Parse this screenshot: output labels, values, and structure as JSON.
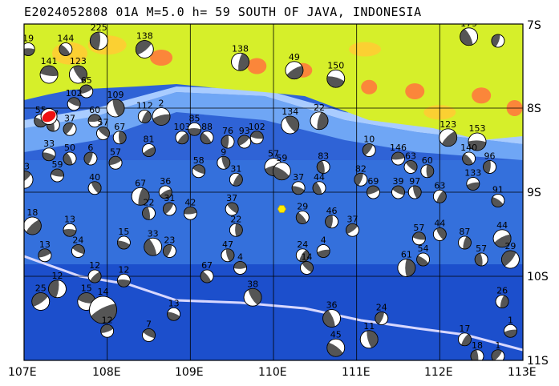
{
  "title": "E2024052808 01A M=5.0 h= 59 SOUTH OF JAVA, INDONESIA",
  "lat_labels": [
    "7S",
    "8S",
    "9S",
    "10S",
    "11S"
  ],
  "lon_labels": [
    "107E",
    "108E",
    "109E",
    "110E",
    "111E",
    "112E",
    "113E"
  ],
  "extent": {
    "lon_min": 107,
    "lon_max": 113,
    "lat_min": -11,
    "lat_max": -7
  },
  "colors": {
    "land": "#d6ef2a",
    "land_high": "#ffcc33",
    "peak": "#ff7a3c",
    "shelf": "#9fc5ff",
    "ocean": "#3b78e0",
    "deep": "#1c4fcc",
    "trench": "#d8d8ff",
    "mechanism_dark": "#555555",
    "main_event": "#ee1111",
    "volcano": "#ffee00"
  },
  "main_event": {
    "lon": 107.3,
    "lat": -8.1,
    "label": "E2024052808 01A"
  },
  "volcano": {
    "lon": 110.1,
    "lat": -9.2
  },
  "mechanisms": [
    {
      "lon": 107.05,
      "lat": -7.3,
      "depth": "19",
      "size": "s"
    },
    {
      "lon": 107.5,
      "lat": -7.3,
      "depth": "144",
      "size": "s"
    },
    {
      "lon": 107.9,
      "lat": -7.2,
      "depth": "225",
      "size": "m"
    },
    {
      "lon": 108.45,
      "lat": -7.3,
      "depth": "138",
      "size": "m"
    },
    {
      "lon": 107.3,
      "lat": -7.6,
      "depth": "141",
      "size": "m"
    },
    {
      "lon": 107.65,
      "lat": -7.6,
      "depth": "123",
      "size": "m"
    },
    {
      "lon": 109.6,
      "lat": -7.45,
      "depth": "138",
      "size": "m"
    },
    {
      "lon": 110.25,
      "lat": -7.55,
      "depth": "49",
      "size": "m"
    },
    {
      "lon": 110.75,
      "lat": -7.65,
      "depth": "150",
      "size": "m"
    },
    {
      "lon": 112.35,
      "lat": -7.15,
      "depth": "179",
      "size": "m"
    },
    {
      "lon": 112.7,
      "lat": -7.2,
      "depth": "",
      "size": "s"
    },
    {
      "lon": 107.75,
      "lat": -7.8,
      "depth": "65",
      "size": "s"
    },
    {
      "lon": 107.6,
      "lat": -7.95,
      "depth": "102",
      "size": "s"
    },
    {
      "lon": 108.1,
      "lat": -8.0,
      "depth": "109",
      "size": "m"
    },
    {
      "lon": 108.45,
      "lat": -8.1,
      "depth": "112",
      "size": "s"
    },
    {
      "lon": 108.65,
      "lat": -8.1,
      "depth": "2",
      "size": "m"
    },
    {
      "lon": 107.2,
      "lat": -8.15,
      "depth": "55",
      "size": "s"
    },
    {
      "lon": 107.35,
      "lat": -8.2,
      "depth": "47",
      "size": "s"
    },
    {
      "lon": 107.55,
      "lat": -8.25,
      "depth": "37",
      "size": "s"
    },
    {
      "lon": 107.85,
      "lat": -8.15,
      "depth": "60",
      "size": "s"
    },
    {
      "lon": 107.95,
      "lat": -8.3,
      "depth": "57",
      "size": "s"
    },
    {
      "lon": 108.15,
      "lat": -8.35,
      "depth": "67",
      "size": "s"
    },
    {
      "lon": 108.9,
      "lat": -8.35,
      "depth": "103",
      "size": "s"
    },
    {
      "lon": 109.05,
      "lat": -8.25,
      "depth": "85",
      "size": "s"
    },
    {
      "lon": 109.2,
      "lat": -8.35,
      "depth": "88",
      "size": "s"
    },
    {
      "lon": 109.45,
      "lat": -8.4,
      "depth": "76",
      "size": "s"
    },
    {
      "lon": 109.65,
      "lat": -8.4,
      "depth": "93",
      "size": "s"
    },
    {
      "lon": 109.8,
      "lat": -8.35,
      "depth": "102",
      "size": "s"
    },
    {
      "lon": 110.2,
      "lat": -8.2,
      "depth": "134",
      "size": "m"
    },
    {
      "lon": 110.55,
      "lat": -8.15,
      "depth": "22",
      "size": "m"
    },
    {
      "lon": 108.5,
      "lat": -8.5,
      "depth": "81",
      "size": "s"
    },
    {
      "lon": 107.3,
      "lat": -8.55,
      "depth": "33",
      "size": "s"
    },
    {
      "lon": 107.55,
      "lat": -8.6,
      "depth": "50",
      "size": "s"
    },
    {
      "lon": 107.8,
      "lat": -8.6,
      "depth": "6",
      "size": "s"
    },
    {
      "lon": 108.1,
      "lat": -8.65,
      "depth": "57",
      "size": "s"
    },
    {
      "lon": 109.1,
      "lat": -8.75,
      "depth": "58",
      "size": "s"
    },
    {
      "lon": 109.4,
      "lat": -8.65,
      "depth": "9",
      "size": "s"
    },
    {
      "lon": 109.55,
      "lat": -8.85,
      "depth": "31",
      "size": "s"
    },
    {
      "lon": 110.0,
      "lat": -8.7,
      "depth": "57",
      "size": "m"
    },
    {
      "lon": 110.1,
      "lat": -8.75,
      "depth": "59",
      "size": "m"
    },
    {
      "lon": 110.6,
      "lat": -8.7,
      "depth": "83",
      "size": "s"
    },
    {
      "lon": 111.15,
      "lat": -8.5,
      "depth": "10",
      "size": "s"
    },
    {
      "lon": 111.5,
      "lat": -8.6,
      "depth": "146",
      "size": "s"
    },
    {
      "lon": 111.65,
      "lat": -8.7,
      "depth": "63",
      "size": "s"
    },
    {
      "lon": 111.85,
      "lat": -8.75,
      "depth": "60",
      "size": "s"
    },
    {
      "lon": 112.1,
      "lat": -8.35,
      "depth": "123",
      "size": "m"
    },
    {
      "lon": 112.45,
      "lat": -8.4,
      "depth": "153",
      "size": "m"
    },
    {
      "lon": 112.35,
      "lat": -8.6,
      "depth": "140",
      "size": "s"
    },
    {
      "lon": 112.6,
      "lat": -8.7,
      "depth": "96",
      "size": "s"
    },
    {
      "lon": 107.0,
      "lat": -8.85,
      "depth": "33",
      "size": "m"
    },
    {
      "lon": 107.4,
      "lat": -8.8,
      "depth": "59",
      "size": "s"
    },
    {
      "lon": 107.85,
      "lat": -8.95,
      "depth": "40",
      "size": "s"
    },
    {
      "lon": 108.4,
      "lat": -9.05,
      "depth": "67",
      "size": "m"
    },
    {
      "lon": 108.7,
      "lat": -9.0,
      "depth": "36",
      "size": "s"
    },
    {
      "lon": 110.3,
      "lat": -8.95,
      "depth": "37",
      "size": "s"
    },
    {
      "lon": 110.55,
      "lat": -8.95,
      "depth": "44",
      "size": "s"
    },
    {
      "lon": 111.05,
      "lat": -8.85,
      "depth": "82",
      "size": "s"
    },
    {
      "lon": 111.2,
      "lat": -9.0,
      "depth": "69",
      "size": "s"
    },
    {
      "lon": 111.5,
      "lat": -9.0,
      "depth": "39",
      "size": "s"
    },
    {
      "lon": 111.7,
      "lat": -9.0,
      "depth": "97",
      "size": "s"
    },
    {
      "lon": 112.0,
      "lat": -9.05,
      "depth": "63",
      "size": "s"
    },
    {
      "lon": 112.4,
      "lat": -8.9,
      "depth": "133",
      "size": "s"
    },
    {
      "lon": 112.7,
      "lat": -9.1,
      "depth": "91",
      "size": "s"
    },
    {
      "lon": 108.5,
      "lat": -9.25,
      "depth": "22",
      "size": "s"
    },
    {
      "lon": 108.75,
      "lat": -9.2,
      "depth": "31",
      "size": "s"
    },
    {
      "lon": 109.0,
      "lat": -9.25,
      "depth": "42",
      "size": "s"
    },
    {
      "lon": 109.5,
      "lat": -9.2,
      "depth": "37",
      "size": "s"
    },
    {
      "lon": 109.55,
      "lat": -9.45,
      "depth": "22",
      "size": "s"
    },
    {
      "lon": 107.1,
      "lat": -9.4,
      "depth": "18",
      "size": "m"
    },
    {
      "lon": 107.55,
      "lat": -9.45,
      "depth": "13",
      "size": "s"
    },
    {
      "lon": 110.35,
      "lat": -9.3,
      "depth": "29",
      "size": "s"
    },
    {
      "lon": 110.7,
      "lat": -9.35,
      "depth": "46",
      "size": "s"
    },
    {
      "lon": 110.95,
      "lat": -9.45,
      "depth": "37",
      "size": "s"
    },
    {
      "lon": 111.75,
      "lat": -9.55,
      "depth": "57",
      "size": "s"
    },
    {
      "lon": 112.0,
      "lat": -9.5,
      "depth": "44",
      "size": "s"
    },
    {
      "lon": 112.3,
      "lat": -9.6,
      "depth": "87",
      "size": "s"
    },
    {
      "lon": 112.75,
      "lat": -9.55,
      "depth": "44",
      "size": "m"
    },
    {
      "lon": 108.2,
      "lat": -9.6,
      "depth": "15",
      "size": "s"
    },
    {
      "lon": 108.55,
      "lat": -9.65,
      "depth": "33",
      "size": "m"
    },
    {
      "lon": 108.75,
      "lat": -9.7,
      "depth": "23",
      "size": "s"
    },
    {
      "lon": 107.25,
      "lat": -9.75,
      "depth": "13",
      "size": "s"
    },
    {
      "lon": 107.65,
      "lat": -9.7,
      "depth": "24",
      "size": "s"
    },
    {
      "lon": 109.45,
      "lat": -9.75,
      "depth": "47",
      "size": "s"
    },
    {
      "lon": 110.35,
      "lat": -9.75,
      "depth": "24",
      "size": "s"
    },
    {
      "lon": 110.6,
      "lat": -9.7,
      "depth": "4",
      "size": "s"
    },
    {
      "lon": 111.8,
      "lat": -9.8,
      "depth": "54",
      "size": "s"
    },
    {
      "lon": 112.5,
      "lat": -9.8,
      "depth": "57",
      "size": "s"
    },
    {
      "lon": 112.85,
      "lat": -9.8,
      "depth": "29",
      "size": "m"
    },
    {
      "lon": 109.6,
      "lat": -9.9,
      "depth": "4",
      "size": "s"
    },
    {
      "lon": 110.4,
      "lat": -9.9,
      "depth": "14",
      "size": "s"
    },
    {
      "lon": 111.6,
      "lat": -9.9,
      "depth": "61",
      "size": "m"
    },
    {
      "lon": 107.85,
      "lat": -10.0,
      "depth": "12",
      "size": "s"
    },
    {
      "lon": 108.2,
      "lat": -10.05,
      "depth": "12",
      "size": "s"
    },
    {
      "lon": 109.2,
      "lat": -10.0,
      "depth": "67",
      "size": "s"
    },
    {
      "lon": 107.4,
      "lat": -10.15,
      "depth": "12",
      "size": "m"
    },
    {
      "lon": 107.2,
      "lat": -10.3,
      "depth": "25",
      "size": "m"
    },
    {
      "lon": 107.75,
      "lat": -10.3,
      "depth": "15",
      "size": "m"
    },
    {
      "lon": 109.75,
      "lat": -10.25,
      "depth": "38",
      "size": "m"
    },
    {
      "lon": 112.75,
      "lat": -10.3,
      "depth": "26",
      "size": "s"
    },
    {
      "lon": 107.95,
      "lat": -10.4,
      "depth": "14",
      "size": "l"
    },
    {
      "lon": 108.8,
      "lat": -10.45,
      "depth": "13",
      "size": "s"
    },
    {
      "lon": 110.7,
      "lat": -10.5,
      "depth": "36",
      "size": "m"
    },
    {
      "lon": 111.3,
      "lat": -10.5,
      "depth": "24",
      "size": "s"
    },
    {
      "lon": 108.0,
      "lat": -10.65,
      "depth": "12",
      "size": "s"
    },
    {
      "lon": 108.5,
      "lat": -10.7,
      "depth": "7",
      "size": "s"
    },
    {
      "lon": 111.15,
      "lat": -10.75,
      "depth": "11",
      "size": "m"
    },
    {
      "lon": 112.3,
      "lat": -10.75,
      "depth": "17",
      "size": "s"
    },
    {
      "lon": 112.85,
      "lat": -10.65,
      "depth": "1",
      "size": "s"
    },
    {
      "lon": 110.75,
      "lat": -10.85,
      "depth": "45",
      "size": "m"
    },
    {
      "lon": 112.45,
      "lat": -10.95,
      "depth": "18",
      "size": "s"
    },
    {
      "lon": 112.7,
      "lat": -10.95,
      "depth": "1",
      "size": "s"
    }
  ],
  "land_blobs": [
    {
      "lon": 107.55,
      "lat": -7.35,
      "rx": 22,
      "ry": 14,
      "tone": "land_high"
    },
    {
      "lon": 108.0,
      "lat": -7.25,
      "rx": 24,
      "ry": 12,
      "tone": "land_high"
    },
    {
      "lon": 108.65,
      "lat": -7.4,
      "rx": 14,
      "ry": 10,
      "tone": "peak"
    },
    {
      "lon": 109.8,
      "lat": -7.5,
      "rx": 12,
      "ry": 10,
      "tone": "peak"
    },
    {
      "lon": 110.35,
      "lat": -7.55,
      "rx": 12,
      "ry": 9,
      "tone": "peak"
    },
    {
      "lon": 111.15,
      "lat": -7.75,
      "rx": 10,
      "ry": 9,
      "tone": "peak"
    },
    {
      "lon": 111.7,
      "lat": -7.8,
      "rx": 12,
      "ry": 10,
      "tone": "peak"
    },
    {
      "lon": 112.5,
      "lat": -7.85,
      "rx": 12,
      "ry": 10,
      "tone": "peak"
    },
    {
      "lon": 112.9,
      "lat": -8.0,
      "rx": 10,
      "ry": 10,
      "tone": "peak"
    },
    {
      "lon": 111.1,
      "lat": -7.3,
      "rx": 20,
      "ry": 9,
      "tone": "land_high"
    },
    {
      "lon": 112.0,
      "lat": -8.05,
      "rx": 20,
      "ry": 9,
      "tone": "land_high"
    }
  ]
}
